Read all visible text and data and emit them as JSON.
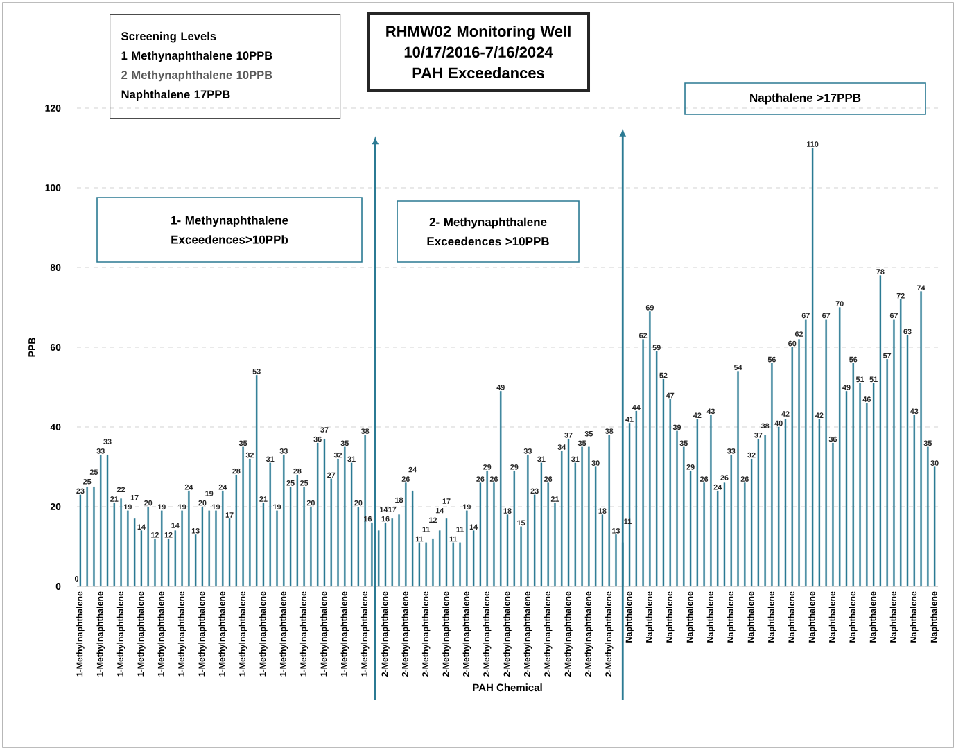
{
  "chart_data": {
    "type": "bar",
    "title": "RHMW02 Monitoring Well",
    "subtitle": "10/17/2016-7/16/2024 PAH Exceedances",
    "xlabel": "PAH Chemical",
    "ylabel": "PPB",
    "categories": [
      "1-Methylnaphthalene",
      null,
      null,
      "1-Methylnaphthalene",
      null,
      null,
      "1-Methylnaphthalene",
      null,
      null,
      "1-Methylnaphthalene",
      null,
      null,
      "1-Methylnaphthalene",
      null,
      null,
      "1-Methylnaphthalene",
      null,
      null,
      "1-Methylnaphthalene",
      null,
      null,
      "1-Methylnaphthalene",
      null,
      null,
      "1-Methylnaphthalene",
      null,
      null,
      "1-Methylnaphthalene",
      null,
      null,
      "1-Methylnaphthalene",
      null,
      null,
      "1-Methylnaphthalene",
      null,
      null,
      "1-Methylnaphthalene",
      null,
      null,
      "1-Methylnaphthalene",
      null,
      null,
      "1-Methylnaphthalene",
      null,
      null,
      "2-Methylnaphthalene",
      null,
      null,
      "2-Methylnaphthalene",
      null,
      null,
      "2-Methylnaphthalene",
      null,
      null,
      "2-Methylnaphthalene",
      null,
      null,
      "2-Methylnaphthalene",
      null,
      null,
      "2-Methylnaphthalene",
      null,
      null,
      "2-Methylnaphthalene",
      null,
      null,
      "2-Methylnaphthalene",
      null,
      null,
      "2-Methylnaphthalene",
      null,
      null,
      "2-Methylnaphthalene",
      null,
      null,
      "2-Methylnaphthalene",
      null,
      null,
      "2-Methylnaphthalene",
      null,
      null,
      "Naphthalene",
      null,
      null,
      "Naphthalene",
      null,
      null,
      "Naphthalene",
      null,
      null,
      "Naphthalene",
      null,
      null,
      "Naphthalene",
      null,
      null,
      "Naphthalene",
      null,
      null,
      "Naphthalene",
      null,
      null,
      "Naphthalene",
      null,
      null,
      "Naphthalene",
      null,
      null,
      "Naphthalene",
      null,
      null,
      "Naphthalene",
      null,
      null,
      "Naphthalene",
      null,
      null,
      "Naphthalene",
      null,
      null,
      "Naphthalene",
      null,
      null,
      "Naphthalene",
      null,
      null,
      "Naphthalene"
    ],
    "values": [
      23,
      25,
      25,
      33,
      33,
      21,
      22,
      19,
      17,
      14,
      20,
      12,
      19,
      12,
      14,
      19,
      24,
      13,
      20,
      19,
      19,
      24,
      17,
      28,
      35,
      32,
      53,
      21,
      31,
      19,
      33,
      25,
      28,
      25,
      20,
      36,
      37,
      27,
      32,
      35,
      31,
      20,
      38,
      16,
      14,
      16,
      17,
      18,
      26,
      24,
      11,
      11,
      12,
      14,
      17,
      11,
      11,
      19,
      14,
      26,
      29,
      26,
      49,
      18,
      29,
      15,
      33,
      23,
      31,
      26,
      21,
      34,
      37,
      31,
      35,
      35,
      30,
      18,
      38,
      13,
      11,
      41,
      44,
      62,
      69,
      59,
      52,
      47,
      39,
      35,
      29,
      42,
      26,
      43,
      24,
      26,
      33,
      54,
      26,
      32,
      37,
      38,
      56,
      40,
      42,
      60,
      62,
      67,
      110,
      42,
      67,
      36,
      70,
      49,
      56,
      51,
      46,
      51,
      78,
      57,
      67,
      72,
      63,
      43,
      74,
      35,
      30
    ],
    "color": "#2b7a93",
    "data_labels": true,
    "ylim": [
      0,
      120
    ],
    "yticks": [
      0,
      20,
      40,
      60,
      80,
      100,
      120
    ],
    "grid": "y",
    "annotations": [
      "Screening Levels",
      "1 Methynaphthalene 10PPB",
      "2 Methynaphthalene 10PPB",
      "Naphthalene  17PPB",
      "1- Methynaphthalene Exceedences>10PPb",
      "2- Methynaphthalene Exceedences >10PPB",
      "Napthalene >17PPB",
      "0"
    ]
  }
}
